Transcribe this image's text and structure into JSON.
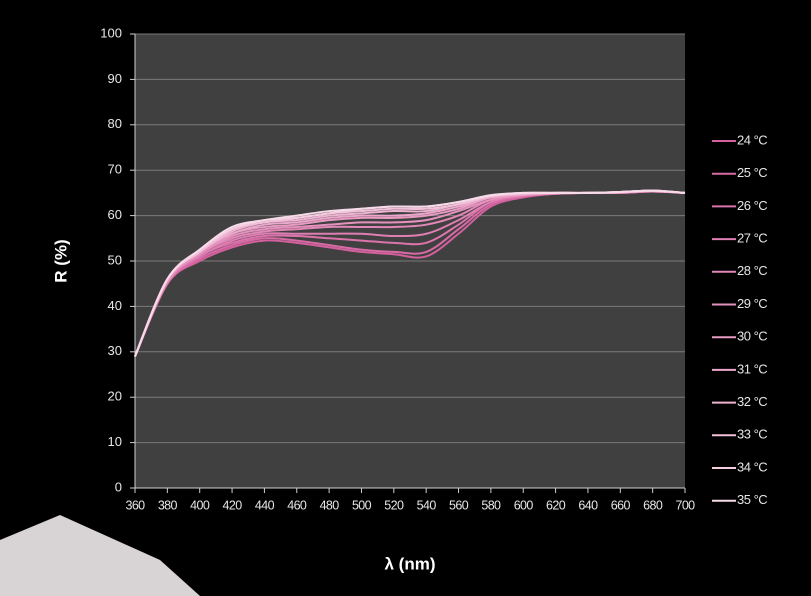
{
  "chart_data": {
    "type": "line",
    "xlabel": "λ (nm)",
    "ylabel": "R (%)",
    "x": [
      360,
      380,
      400,
      420,
      440,
      460,
      480,
      500,
      520,
      540,
      560,
      580,
      600,
      620,
      640,
      660,
      680,
      700
    ],
    "xlim": [
      360,
      700
    ],
    "xticks": [
      360,
      380,
      400,
      420,
      440,
      460,
      480,
      500,
      520,
      540,
      560,
      580,
      600,
      620,
      640,
      660,
      680,
      700
    ],
    "ylim": [
      0,
      100
    ],
    "yticks": [
      0,
      10,
      20,
      30,
      40,
      50,
      60,
      70,
      80,
      90,
      100
    ],
    "grid": true,
    "legend": "right",
    "series": [
      {
        "name": "24 °C",
        "color": "#d4609e",
        "values": [
          29,
          45,
          50,
          53,
          54.5,
          54,
          53,
          52,
          51.5,
          51,
          56,
          62,
          64,
          64.8,
          65,
          65,
          65.3,
          65
        ]
      },
      {
        "name": "25 °C",
        "color": "#d86aa6",
        "values": [
          29,
          45,
          50.5,
          53.5,
          55,
          54.5,
          53.5,
          52.5,
          52,
          52,
          57,
          62.5,
          64.2,
          64.8,
          65,
          65,
          65.3,
          65
        ]
      },
      {
        "name": "26 °C",
        "color": "#db74ab",
        "values": [
          29,
          45,
          51,
          54,
          55.5,
          55.5,
          55,
          54.5,
          54,
          54,
          58,
          63,
          64.3,
          64.8,
          65,
          65,
          65.3,
          65
        ]
      },
      {
        "name": "27 °C",
        "color": "#de7eb2",
        "values": [
          29,
          45.5,
          51,
          54.5,
          56,
          56,
          56,
          56,
          55.5,
          56,
          59,
          63,
          64.4,
          64.9,
          65,
          65.1,
          65.3,
          65
        ]
      },
      {
        "name": "28 °C",
        "color": "#e288b8",
        "values": [
          29,
          45.5,
          51.5,
          55,
          56.5,
          57,
          57.5,
          57.5,
          57.5,
          58,
          60,
          63.5,
          64.5,
          64.9,
          65,
          65.1,
          65.4,
          65
        ]
      },
      {
        "name": "29 °C",
        "color": "#e592be",
        "values": [
          29,
          45.5,
          51.5,
          55.5,
          57,
          57.5,
          58,
          58.5,
          58.5,
          59,
          61,
          63.5,
          64.5,
          64.9,
          65,
          65.1,
          65.4,
          65
        ]
      },
      {
        "name": "30 °C",
        "color": "#e89cc4",
        "values": [
          29,
          45.5,
          52,
          56,
          57.5,
          58,
          59,
          59.5,
          59.5,
          60,
          61.5,
          64,
          64.6,
          65,
          65,
          65.1,
          65.4,
          65
        ]
      },
      {
        "name": "31 °C",
        "color": "#eba8cb",
        "values": [
          29,
          46,
          52,
          56,
          58,
          58.5,
          59.5,
          60,
          60,
          60.5,
          62,
          64,
          64.7,
          65,
          65,
          65.1,
          65.4,
          65
        ]
      },
      {
        "name": "32 °C",
        "color": "#eeb4d2",
        "values": [
          29,
          46,
          52,
          56.5,
          58.5,
          59,
          60,
          60.5,
          61,
          61,
          62.5,
          64.2,
          64.8,
          65,
          65,
          65.2,
          65.5,
          65
        ]
      },
      {
        "name": "33 °C",
        "color": "#f1c0d9",
        "values": [
          29,
          46,
          52,
          57,
          58.5,
          59.5,
          60.5,
          61,
          61.5,
          61.5,
          62.5,
          64.3,
          64.9,
          65,
          65,
          65.2,
          65.5,
          65
        ]
      },
      {
        "name": "34 °C",
        "color": "#f4cde1",
        "values": [
          29,
          46,
          52.5,
          57,
          59,
          59.5,
          60.5,
          61.5,
          62,
          62,
          63,
          64.4,
          65,
          65,
          65,
          65.2,
          65.5,
          65
        ]
      },
      {
        "name": "35 °C",
        "color": "#f7dbe9",
        "values": [
          29,
          46,
          52.5,
          57.5,
          59,
          60,
          61,
          61.5,
          62,
          62,
          63,
          64.5,
          65,
          65,
          65,
          65.2,
          65.5,
          65
        ]
      }
    ]
  }
}
